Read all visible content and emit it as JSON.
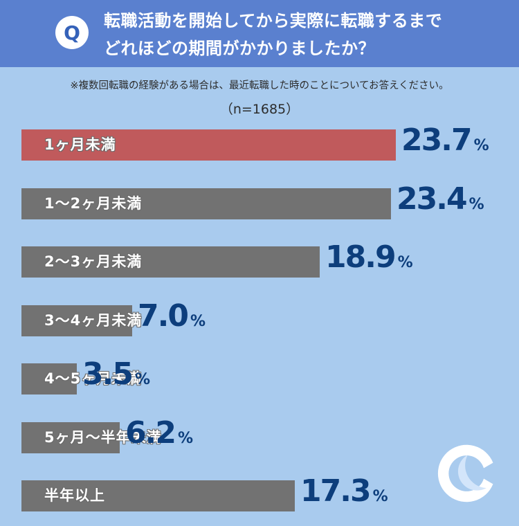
{
  "question": {
    "badge": "Q",
    "line1": "転職活動を開始してから実際に転職するまで",
    "line2": "どれほどの期間がかかりましたか？"
  },
  "note": "※複数回転職の経験がある場合は、最近転職した時のことについてお答えください。",
  "sample_size": "（n=1685）",
  "colors": {
    "header": "#5a80cf",
    "background": "#a9cbee",
    "highlight_bar": "#c05a5c",
    "bar": "#727272",
    "value_text": "#0d3e7c"
  },
  "chart_data": {
    "type": "bar",
    "orientation": "horizontal",
    "title": "",
    "unit": "%",
    "categories": [
      "1ヶ月未満",
      "1〜2ヶ月未満",
      "2〜3ヶ月未満",
      "3〜4ヶ月未満",
      "4〜5ヶ月未満",
      "5ヶ月〜半年未満",
      "半年以上"
    ],
    "values": [
      23.7,
      23.4,
      18.9,
      7.0,
      3.5,
      6.2,
      17.3
    ],
    "value_labels": [
      "23.7",
      "23.4",
      "18.9",
      "7.0",
      "3.5",
      "6.2",
      "17.3"
    ],
    "highlighted_index": 0
  },
  "logo_icon": "c-logo-icon"
}
